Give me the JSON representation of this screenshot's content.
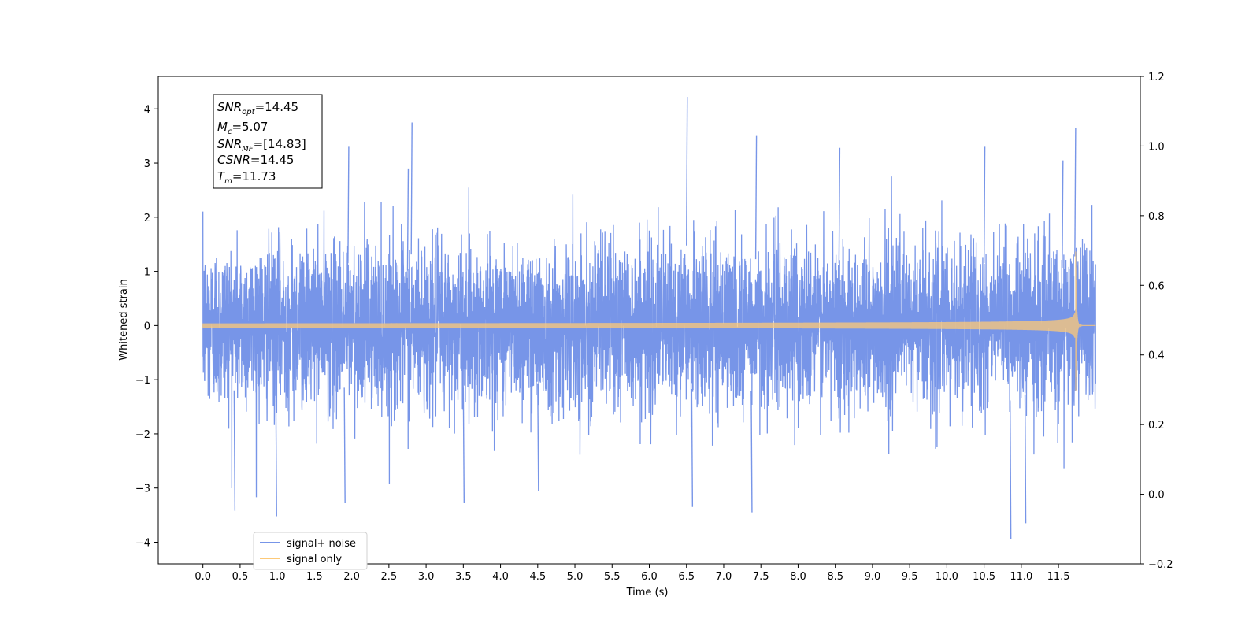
{
  "chart_data": {
    "type": "line",
    "xlabel": "Time (s)",
    "ylabel": "Whitened strain",
    "xlim": [
      -0.6,
      12.6
    ],
    "ylim": [
      -4.4,
      4.6
    ],
    "y2lim": [
      -0.2,
      1.2
    ],
    "x_ticks": [
      0.0,
      0.5,
      1.0,
      1.5,
      2.0,
      2.5,
      3.0,
      3.5,
      4.0,
      4.5,
      5.0,
      5.5,
      6.0,
      6.5,
      7.0,
      7.5,
      8.0,
      8.5,
      9.0,
      9.5,
      10.0,
      10.5,
      11.0,
      11.5
    ],
    "x_tick_labels": [
      "0.0",
      "0.5",
      "1.0",
      "1.5",
      "2.0",
      "2.5",
      "3.0",
      "3.5",
      "4.0",
      "4.5",
      "5.0",
      "5.5",
      "6.0",
      "6.5",
      "7.0",
      "7.5",
      "8.0",
      "8.5",
      "9.0",
      "9.5",
      "10.0",
      "10.5",
      "11.0",
      "11.5"
    ],
    "y_ticks": [
      -4,
      -3,
      -2,
      -1,
      0,
      1,
      2,
      3,
      4
    ],
    "y_tick_labels": [
      "−4",
      "−3",
      "−2",
      "−1",
      "0",
      "1",
      "2",
      "3",
      "4"
    ],
    "y2_ticks": [
      -0.2,
      0.0,
      0.2,
      0.4,
      0.6,
      0.8,
      1.0,
      1.2
    ],
    "y2_tick_labels": [
      "−0.2",
      "0.0",
      "0.2",
      "0.4",
      "0.6",
      "0.8",
      "1.0",
      "1.2"
    ],
    "grid": false,
    "legend_position": "lower-left",
    "series": [
      {
        "name": "signal+ noise",
        "color": "#7795e8",
        "x_range": [
          0.0,
          12.0
        ],
        "noise_std": 0.75,
        "peak_max": 4.22,
        "peak_max_time": 6.5,
        "peak_min": -3.95,
        "peak_min_time": 10.85
      },
      {
        "name": "signal only",
        "color": "#fdc977",
        "x_range": [
          0.0,
          12.0
        ],
        "merger_time": 11.73,
        "peak_amplitude": 1.45,
        "start_amplitude": 0.04
      }
    ],
    "annotations": [
      {
        "base": "SNR",
        "sub": "opt",
        "value": "=14.45"
      },
      {
        "base": "M",
        "sub": "c",
        "value": "=5.07"
      },
      {
        "base": "SNR",
        "sub": "MF",
        "value": "=[14.83]"
      },
      {
        "base": "CSNR",
        "sub": "",
        "value": "=14.45"
      },
      {
        "base": "T",
        "sub": "m",
        "value": "=11.73"
      }
    ]
  }
}
